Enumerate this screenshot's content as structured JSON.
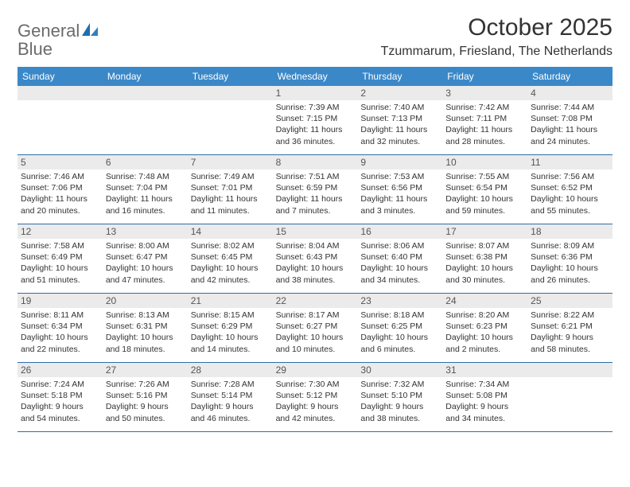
{
  "brand": {
    "word1": "General",
    "word2": "Blue"
  },
  "title": "October 2025",
  "location": "Tzummarum, Friesland, The Netherlands",
  "colors": {
    "header_bg": "#3b88c8",
    "header_text": "#ffffff",
    "daynum_bg": "#ebebeb",
    "rule": "#2e6fa8",
    "logo_gray": "#6b6b6b",
    "logo_blue": "#2f7fc2",
    "text": "#333333"
  },
  "typography": {
    "title_fontsize": 30,
    "location_fontsize": 16,
    "dow_fontsize": 12,
    "daynum_fontsize": 12,
    "body_fontsize": 10.5
  },
  "days_of_week": [
    "Sunday",
    "Monday",
    "Tuesday",
    "Wednesday",
    "Thursday",
    "Friday",
    "Saturday"
  ],
  "weeks": [
    [
      {
        "blank": true
      },
      {
        "blank": true
      },
      {
        "blank": true
      },
      {
        "n": "1",
        "sunrise": "7:39 AM",
        "sunset": "7:15 PM",
        "daylight": "11 hours and 36 minutes."
      },
      {
        "n": "2",
        "sunrise": "7:40 AM",
        "sunset": "7:13 PM",
        "daylight": "11 hours and 32 minutes."
      },
      {
        "n": "3",
        "sunrise": "7:42 AM",
        "sunset": "7:11 PM",
        "daylight": "11 hours and 28 minutes."
      },
      {
        "n": "4",
        "sunrise": "7:44 AM",
        "sunset": "7:08 PM",
        "daylight": "11 hours and 24 minutes."
      }
    ],
    [
      {
        "n": "5",
        "sunrise": "7:46 AM",
        "sunset": "7:06 PM",
        "daylight": "11 hours and 20 minutes."
      },
      {
        "n": "6",
        "sunrise": "7:48 AM",
        "sunset": "7:04 PM",
        "daylight": "11 hours and 16 minutes."
      },
      {
        "n": "7",
        "sunrise": "7:49 AM",
        "sunset": "7:01 PM",
        "daylight": "11 hours and 11 minutes."
      },
      {
        "n": "8",
        "sunrise": "7:51 AM",
        "sunset": "6:59 PM",
        "daylight": "11 hours and 7 minutes."
      },
      {
        "n": "9",
        "sunrise": "7:53 AM",
        "sunset": "6:56 PM",
        "daylight": "11 hours and 3 minutes."
      },
      {
        "n": "10",
        "sunrise": "7:55 AM",
        "sunset": "6:54 PM",
        "daylight": "10 hours and 59 minutes."
      },
      {
        "n": "11",
        "sunrise": "7:56 AM",
        "sunset": "6:52 PM",
        "daylight": "10 hours and 55 minutes."
      }
    ],
    [
      {
        "n": "12",
        "sunrise": "7:58 AM",
        "sunset": "6:49 PM",
        "daylight": "10 hours and 51 minutes."
      },
      {
        "n": "13",
        "sunrise": "8:00 AM",
        "sunset": "6:47 PM",
        "daylight": "10 hours and 47 minutes."
      },
      {
        "n": "14",
        "sunrise": "8:02 AM",
        "sunset": "6:45 PM",
        "daylight": "10 hours and 42 minutes."
      },
      {
        "n": "15",
        "sunrise": "8:04 AM",
        "sunset": "6:43 PM",
        "daylight": "10 hours and 38 minutes."
      },
      {
        "n": "16",
        "sunrise": "8:06 AM",
        "sunset": "6:40 PM",
        "daylight": "10 hours and 34 minutes."
      },
      {
        "n": "17",
        "sunrise": "8:07 AM",
        "sunset": "6:38 PM",
        "daylight": "10 hours and 30 minutes."
      },
      {
        "n": "18",
        "sunrise": "8:09 AM",
        "sunset": "6:36 PM",
        "daylight": "10 hours and 26 minutes."
      }
    ],
    [
      {
        "n": "19",
        "sunrise": "8:11 AM",
        "sunset": "6:34 PM",
        "daylight": "10 hours and 22 minutes."
      },
      {
        "n": "20",
        "sunrise": "8:13 AM",
        "sunset": "6:31 PM",
        "daylight": "10 hours and 18 minutes."
      },
      {
        "n": "21",
        "sunrise": "8:15 AM",
        "sunset": "6:29 PM",
        "daylight": "10 hours and 14 minutes."
      },
      {
        "n": "22",
        "sunrise": "8:17 AM",
        "sunset": "6:27 PM",
        "daylight": "10 hours and 10 minutes."
      },
      {
        "n": "23",
        "sunrise": "8:18 AM",
        "sunset": "6:25 PM",
        "daylight": "10 hours and 6 minutes."
      },
      {
        "n": "24",
        "sunrise": "8:20 AM",
        "sunset": "6:23 PM",
        "daylight": "10 hours and 2 minutes."
      },
      {
        "n": "25",
        "sunrise": "8:22 AM",
        "sunset": "6:21 PM",
        "daylight": "9 hours and 58 minutes."
      }
    ],
    [
      {
        "n": "26",
        "sunrise": "7:24 AM",
        "sunset": "5:18 PM",
        "daylight": "9 hours and 54 minutes."
      },
      {
        "n": "27",
        "sunrise": "7:26 AM",
        "sunset": "5:16 PM",
        "daylight": "9 hours and 50 minutes."
      },
      {
        "n": "28",
        "sunrise": "7:28 AM",
        "sunset": "5:14 PM",
        "daylight": "9 hours and 46 minutes."
      },
      {
        "n": "29",
        "sunrise": "7:30 AM",
        "sunset": "5:12 PM",
        "daylight": "9 hours and 42 minutes."
      },
      {
        "n": "30",
        "sunrise": "7:32 AM",
        "sunset": "5:10 PM",
        "daylight": "9 hours and 38 minutes."
      },
      {
        "n": "31",
        "sunrise": "7:34 AM",
        "sunset": "5:08 PM",
        "daylight": "9 hours and 34 minutes."
      },
      {
        "blank": true
      }
    ]
  ],
  "labels": {
    "sunrise": "Sunrise:",
    "sunset": "Sunset:",
    "daylight": "Daylight:"
  }
}
